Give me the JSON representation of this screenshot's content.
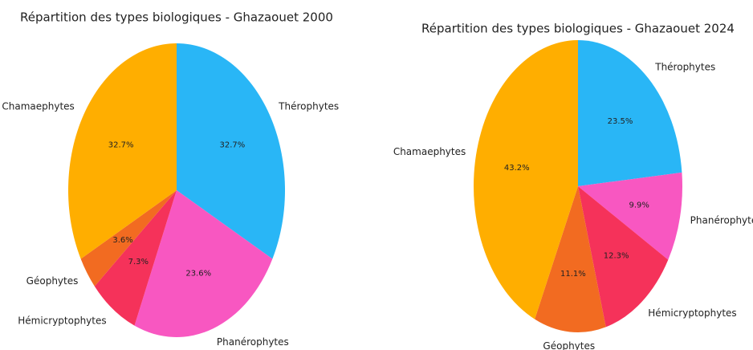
{
  "chart_data": [
    {
      "type": "pie",
      "title": "Répartition des types biologiques - Ghazaouet 2000",
      "categories": [
        "Thérophytes",
        "Phanérophytes",
        "Hémicryptophytes",
        "Géophytes",
        "Chamaephytes"
      ],
      "values": [
        32.7,
        23.6,
        7.3,
        3.6,
        32.7
      ],
      "value_labels": [
        "32.7%",
        "23.6%",
        "7.3%",
        "3.6%",
        "32.7%"
      ],
      "colors": [
        "#29b6f6",
        "#f857c1",
        "#f5325a",
        "#f26b21",
        "#ffae00"
      ]
    },
    {
      "type": "pie",
      "title": "Répartition des types biologiques - Ghazaouet 2024",
      "categories": [
        "Thérophytes",
        "Phanérophytes",
        "Hémicryptophytes",
        "Géophytes",
        "Chamaephytes"
      ],
      "values": [
        23.5,
        9.9,
        12.3,
        11.1,
        43.2
      ],
      "value_labels": [
        "23.5%",
        "9.9%",
        "12.3%",
        "11.1%",
        "43.2%"
      ],
      "colors": [
        "#29b6f6",
        "#f857c1",
        "#f5325a",
        "#f26b21",
        "#ffae00"
      ]
    }
  ]
}
